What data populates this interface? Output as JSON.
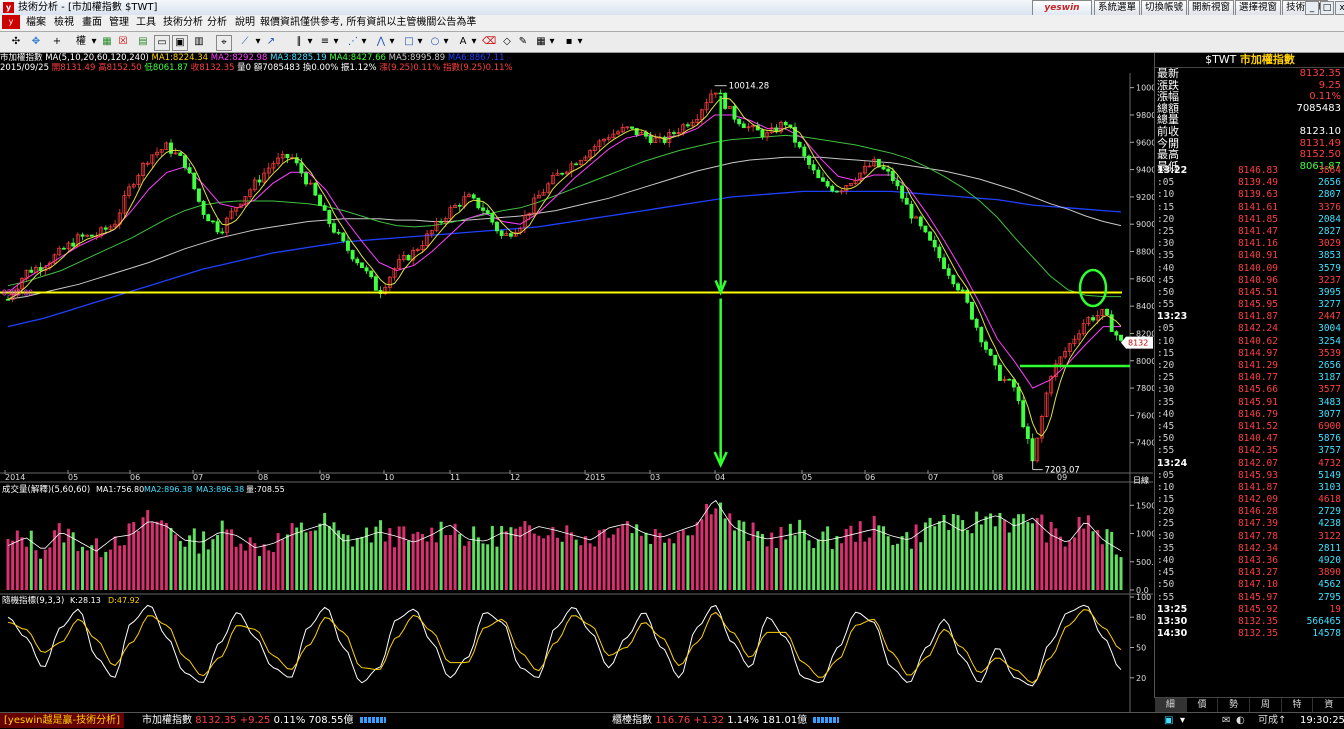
{
  "window": {
    "title": "技術分析 - [市加權指數 $TWT]",
    "app_icon_text": "y"
  },
  "menu": [
    "檔案",
    "檢視",
    "畫面",
    "管理",
    "工具",
    "技術分析",
    "分析",
    "說明",
    "報價資訊僅供參考, 所有資訊以主管機關公告為準"
  ],
  "right_tabs": {
    "logo": "yeswin",
    "items": [
      "系統選單",
      "切換帳號",
      "開新視窗",
      "選擇視窗",
      "技術分析"
    ]
  },
  "window_buttons": {
    "min": "_",
    "max": "□",
    "close": "x"
  },
  "toolbar": {
    "period_label": "權"
  },
  "info": {
    "line1_name": "市加權指數",
    "line1_ma": "MA(5,10,20,60,120,240)",
    "ma1": "MA1:8224.34",
    "ma2": "MA2:8292.98",
    "ma3": "MA3:8285.19",
    "ma4": "MA4:8427.66",
    "ma5": "MA5:8995.89",
    "ma6": "MA6:8867.11",
    "line2_date": "2015/09/25",
    "open": "開8131.49",
    "high": "高8152.50",
    "low": "低8061.87",
    "close": "收8132.35",
    "vol": "量0",
    "amount": "額7085483",
    "turnover": "換0.00%",
    "amplitude": "振1.12%",
    "chg": "漲(9.25)0.11%",
    "idx": "指數(9.25)0.11%"
  },
  "chart_data": [
    {
      "type": "line",
      "subtype": "candlestick",
      "name": "市加權指數",
      "ylim": [
        7200,
        10100
      ],
      "yticks": [
        7400,
        7600,
        7800,
        8000,
        8200,
        8400,
        8600,
        8800,
        9000,
        9200,
        9400,
        9600,
        9800,
        10000
      ],
      "x_labels": [
        "2014",
        "05",
        "06",
        "07",
        "08",
        "09",
        "10",
        "11",
        "12",
        "2015",
        "03",
        "04",
        "05",
        "06",
        "07",
        "08",
        "09"
      ],
      "x_unit_label": "日線",
      "annotations": {
        "high": "10014.28",
        "low": "7203.07",
        "level_label": "8500.00",
        "last_price_label": "8132"
      },
      "series": [
        {
          "name": "price",
          "values": [
            8450,
            8650,
            8700,
            8800,
            8900,
            8920,
            9000,
            9300,
            9500,
            9570,
            9450,
            9100,
            8950,
            9150,
            9300,
            9450,
            9500,
            9300,
            9050,
            8850,
            8700,
            8500,
            8700,
            8800,
            8950,
            9100,
            9200,
            9100,
            8900,
            9000,
            9200,
            9350,
            9450,
            9550,
            9650,
            9700,
            9650,
            9600,
            9700,
            9800,
            10000,
            9800,
            9700,
            9650,
            9750,
            9500,
            9300,
            9250,
            9350,
            9450,
            9350,
            9100,
            8900,
            8700,
            8500,
            8200,
            7900,
            7800,
            7250,
            7900,
            8100,
            8300,
            8350,
            8132
          ]
        },
        {
          "name": "MA20",
          "values": [
            8500,
            8600,
            8680,
            8760,
            8840,
            8900,
            8960,
            9100,
            9260,
            9380,
            9420,
            9300,
            9150,
            9120,
            9180,
            9300,
            9380,
            9380,
            9250,
            9050,
            8880,
            8720,
            8660,
            8700,
            8800,
            8920,
            9040,
            9080,
            9020,
            9000,
            9080,
            9200,
            9330,
            9440,
            9550,
            9630,
            9660,
            9630,
            9650,
            9700,
            9800,
            9800,
            9760,
            9700,
            9700,
            9630,
            9480,
            9350,
            9320,
            9360,
            9360,
            9260,
            9080,
            8880,
            8660,
            8420,
            8160,
            7990,
            7800,
            7860,
            7980,
            8120,
            8250,
            8250
          ]
        },
        {
          "name": "MA60",
          "values": [
            8550,
            8580,
            8620,
            8660,
            8720,
            8780,
            8840,
            8900,
            8970,
            9040,
            9100,
            9140,
            9160,
            9170,
            9170,
            9170,
            9160,
            9150,
            9130,
            9100,
            9060,
            9020,
            8990,
            8980,
            8990,
            9010,
            9040,
            9070,
            9100,
            9120,
            9160,
            9210,
            9260,
            9310,
            9360,
            9410,
            9460,
            9500,
            9540,
            9570,
            9600,
            9620,
            9630,
            9640,
            9650,
            9640,
            9620,
            9600,
            9580,
            9550,
            9520,
            9480,
            9420,
            9350,
            9270,
            9170,
            9050,
            8900,
            8760,
            8620,
            8520,
            8480,
            8470,
            8470
          ]
        },
        {
          "name": "MA120",
          "values": [
            8450,
            8470,
            8500,
            8530,
            8560,
            8600,
            8640,
            8680,
            8720,
            8770,
            8820,
            8860,
            8900,
            8930,
            8960,
            8980,
            9000,
            9020,
            9030,
            9040,
            9040,
            9040,
            9030,
            9030,
            9020,
            9020,
            9030,
            9040,
            9050,
            9060,
            9080,
            9100,
            9130,
            9160,
            9190,
            9230,
            9270,
            9310,
            9350,
            9390,
            9420,
            9450,
            9470,
            9480,
            9490,
            9490,
            9490,
            9480,
            9470,
            9460,
            9450,
            9430,
            9410,
            9390,
            9360,
            9330,
            9290,
            9250,
            9200,
            9150,
            9110,
            9060,
            9020,
            8990
          ]
        },
        {
          "name": "MA240",
          "values": [
            8250,
            8280,
            8310,
            8350,
            8390,
            8430,
            8470,
            8510,
            8550,
            8590,
            8630,
            8670,
            8700,
            8730,
            8760,
            8790,
            8810,
            8830,
            8850,
            8870,
            8880,
            8890,
            8900,
            8910,
            8920,
            8930,
            8940,
            8950,
            8960,
            8970,
            8980,
            9000,
            9020,
            9040,
            9060,
            9080,
            9100,
            9120,
            9140,
            9160,
            9180,
            9200,
            9210,
            9220,
            9230,
            9240,
            9240,
            9240,
            9240,
            9240,
            9240,
            9230,
            9220,
            9210,
            9200,
            9190,
            9180,
            9160,
            9140,
            9130,
            9120,
            9110,
            9100,
            9090
          ]
        }
      ]
    },
    {
      "type": "bar",
      "name": "成交量(解釋)(5,60,60)",
      "legend": {
        "ma1": "MA1:756.80",
        "ma2": "MA2:896.38",
        "ma3": "MA3:896.38",
        "vol": "量:708.55"
      },
      "ylim": [
        0,
        1700
      ],
      "yticks": [
        "0.0",
        "500.0",
        "1000.0",
        "1500.0"
      ],
      "values": [
        800,
        950,
        720,
        1050,
        880,
        700,
        950,
        1000,
        1250,
        1150,
        900,
        860,
        1050,
        980,
        760,
        840,
        990,
        1100,
        1200,
        880,
        940,
        1050,
        970,
        860,
        1000,
        1180,
        920,
        880,
        1040,
        970,
        1150,
        1080,
        990,
        900,
        1120,
        1200,
        1030,
        950,
        1070,
        1180,
        1650,
        1150,
        1000,
        920,
        980,
        1050,
        880,
        940,
        1020,
        1100,
        980,
        900,
        1130,
        1250,
        1060,
        1250,
        1350,
        1150,
        1300,
        1000,
        850,
        1250,
        900,
        710
      ]
    },
    {
      "type": "line",
      "name": "隨機指標(9,3,3)",
      "legend": {
        "k": "K:28.13",
        "d": "D:47.92"
      },
      "ylim": [
        0,
        100
      ],
      "yticks": [
        "20",
        "50",
        "80",
        "100"
      ],
      "series": [
        {
          "name": "K",
          "values": [
            80,
            60,
            30,
            70,
            88,
            40,
            20,
            75,
            92,
            60,
            25,
            15,
            55,
            85,
            60,
            30,
            20,
            70,
            90,
            50,
            15,
            30,
            78,
            88,
            55,
            20,
            40,
            85,
            75,
            30,
            20,
            70,
            90,
            65,
            30,
            60,
            85,
            50,
            20,
            70,
            92,
            55,
            30,
            80,
            60,
            20,
            15,
            50,
            85,
            75,
            30,
            15,
            50,
            78,
            40,
            15,
            50,
            20,
            12,
            55,
            85,
            92,
            60,
            28
          ]
        },
        {
          "name": "D",
          "values": [
            75,
            68,
            45,
            55,
            78,
            58,
            32,
            55,
            82,
            72,
            40,
            22,
            40,
            72,
            68,
            42,
            28,
            52,
            80,
            65,
            30,
            28,
            60,
            82,
            66,
            35,
            35,
            70,
            78,
            45,
            27,
            55,
            82,
            72,
            42,
            50,
            75,
            60,
            32,
            55,
            85,
            65,
            40,
            65,
            65,
            35,
            20,
            38,
            72,
            78,
            45,
            22,
            40,
            68,
            50,
            25,
            40,
            28,
            15,
            40,
            72,
            88,
            70,
            47.92
          ]
        }
      ]
    }
  ],
  "right_panel": {
    "symbol": "$TWT",
    "name": "市加權指數",
    "quote": [
      {
        "label": "最新",
        "value": "8132.35",
        "color": "#ff4040"
      },
      {
        "label": "漲跌",
        "value": "9.25",
        "color": "#ff4040"
      },
      {
        "label": "漲幅",
        "value": "0.11%",
        "color": "#ff4040"
      },
      {
        "label": "總額",
        "value": "7085483",
        "color": "#ffffff"
      },
      {
        "label": "總量",
        "value": "",
        "color": "#ffffff"
      },
      {
        "label": "前收",
        "value": "8123.10",
        "color": "#ffffff"
      },
      {
        "label": "今開",
        "value": "8131.49",
        "color": "#ff4040"
      },
      {
        "label": "最高",
        "value": "8152.50",
        "color": "#ff4040"
      },
      {
        "label": "最低",
        "value": "8061.87",
        "color": "#40ff40"
      }
    ],
    "ticks": [
      {
        "t": "13:22",
        "p": "8146.83",
        "q": "3864",
        "bold": true
      },
      {
        "t": ":05",
        "p": "8139.49",
        "q": "2656"
      },
      {
        "t": ":10",
        "p": "8139.63",
        "q": "2807"
      },
      {
        "t": ":15",
        "p": "8141.61",
        "q": "3376"
      },
      {
        "t": ":20",
        "p": "8141.85",
        "q": "2084"
      },
      {
        "t": ":25",
        "p": "8141.47",
        "q": "2827"
      },
      {
        "t": ":30",
        "p": "8141.16",
        "q": "3029"
      },
      {
        "t": ":35",
        "p": "8140.91",
        "q": "3853"
      },
      {
        "t": ":40",
        "p": "8140.09",
        "q": "3579"
      },
      {
        "t": ":45",
        "p": "8140.96",
        "q": "3237"
      },
      {
        "t": ":50",
        "p": "8145.51",
        "q": "3995"
      },
      {
        "t": ":55",
        "p": "8145.95",
        "q": "3277"
      },
      {
        "t": "13:23",
        "p": "8141.87",
        "q": "2447",
        "bold": true
      },
      {
        "t": ":05",
        "p": "8142.24",
        "q": "3004"
      },
      {
        "t": ":10",
        "p": "8140.62",
        "q": "3254"
      },
      {
        "t": ":15",
        "p": "8144.97",
        "q": "3539"
      },
      {
        "t": ":20",
        "p": "8141.29",
        "q": "2656"
      },
      {
        "t": ":25",
        "p": "8140.77",
        "q": "3187"
      },
      {
        "t": ":30",
        "p": "8145.66",
        "q": "3577"
      },
      {
        "t": ":35",
        "p": "8145.91",
        "q": "3483"
      },
      {
        "t": ":40",
        "p": "8146.79",
        "q": "3077"
      },
      {
        "t": ":45",
        "p": "8141.52",
        "q": "6900"
      },
      {
        "t": ":50",
        "p": "8140.47",
        "q": "5876"
      },
      {
        "t": ":55",
        "p": "8142.35",
        "q": "3757"
      },
      {
        "t": "13:24",
        "p": "8142.07",
        "q": "4732",
        "bold": true
      },
      {
        "t": ":05",
        "p": "8145.93",
        "q": "5149"
      },
      {
        "t": ":10",
        "p": "8141.87",
        "q": "3103"
      },
      {
        "t": ":15",
        "p": "8142.09",
        "q": "4618"
      },
      {
        "t": ":20",
        "p": "8146.28",
        "q": "2729"
      },
      {
        "t": ":25",
        "p": "8147.39",
        "q": "4238"
      },
      {
        "t": ":30",
        "p": "8147.78",
        "q": "3122"
      },
      {
        "t": ":35",
        "p": "8142.34",
        "q": "2811"
      },
      {
        "t": ":40",
        "p": "8143.36",
        "q": "4920"
      },
      {
        "t": ":45",
        "p": "8143.27",
        "q": "3890"
      },
      {
        "t": ":50",
        "p": "8147.10",
        "q": "4562"
      },
      {
        "t": ":55",
        "p": "8145.97",
        "q": "2795"
      },
      {
        "t": "13:25",
        "p": "8145.92",
        "q": "19",
        "bold": true
      },
      {
        "t": "13:30",
        "p": "8132.35",
        "q": "566465",
        "bold": true
      },
      {
        "t": "14:30",
        "p": "8132.35",
        "q": "14578",
        "bold": true
      }
    ],
    "tabs": [
      "細",
      "價",
      "勢",
      "周",
      "特",
      "資"
    ]
  },
  "status": {
    "brand": "[yeswin越是贏-技術分析]",
    "idx1_name": "市加權指數",
    "idx1_price": "8132.35",
    "idx1_chg": "+9.25",
    "idx1_pct": "0.11%",
    "idx1_amt": "708.55億",
    "idx2_name": "櫃檯指數",
    "idx2_price": "116.76",
    "idx2_chg": "+1.32",
    "idx2_pct": "1.14%",
    "idx2_amt": "181.01億",
    "conn": "可成↑",
    "time": "19:30:25"
  },
  "colors": {
    "up": "#ff4040",
    "down": "#40ff40",
    "vol_up": "#d83070",
    "vol_down": "#60e060",
    "ma20": "#ff40ff",
    "ma60": "#40c040",
    "ma120": "#c8c8c8",
    "ma240": "#2040ff",
    "ma_fast": "#e0e040",
    "level": "#ffff00",
    "arrow": "#30ff30"
  }
}
